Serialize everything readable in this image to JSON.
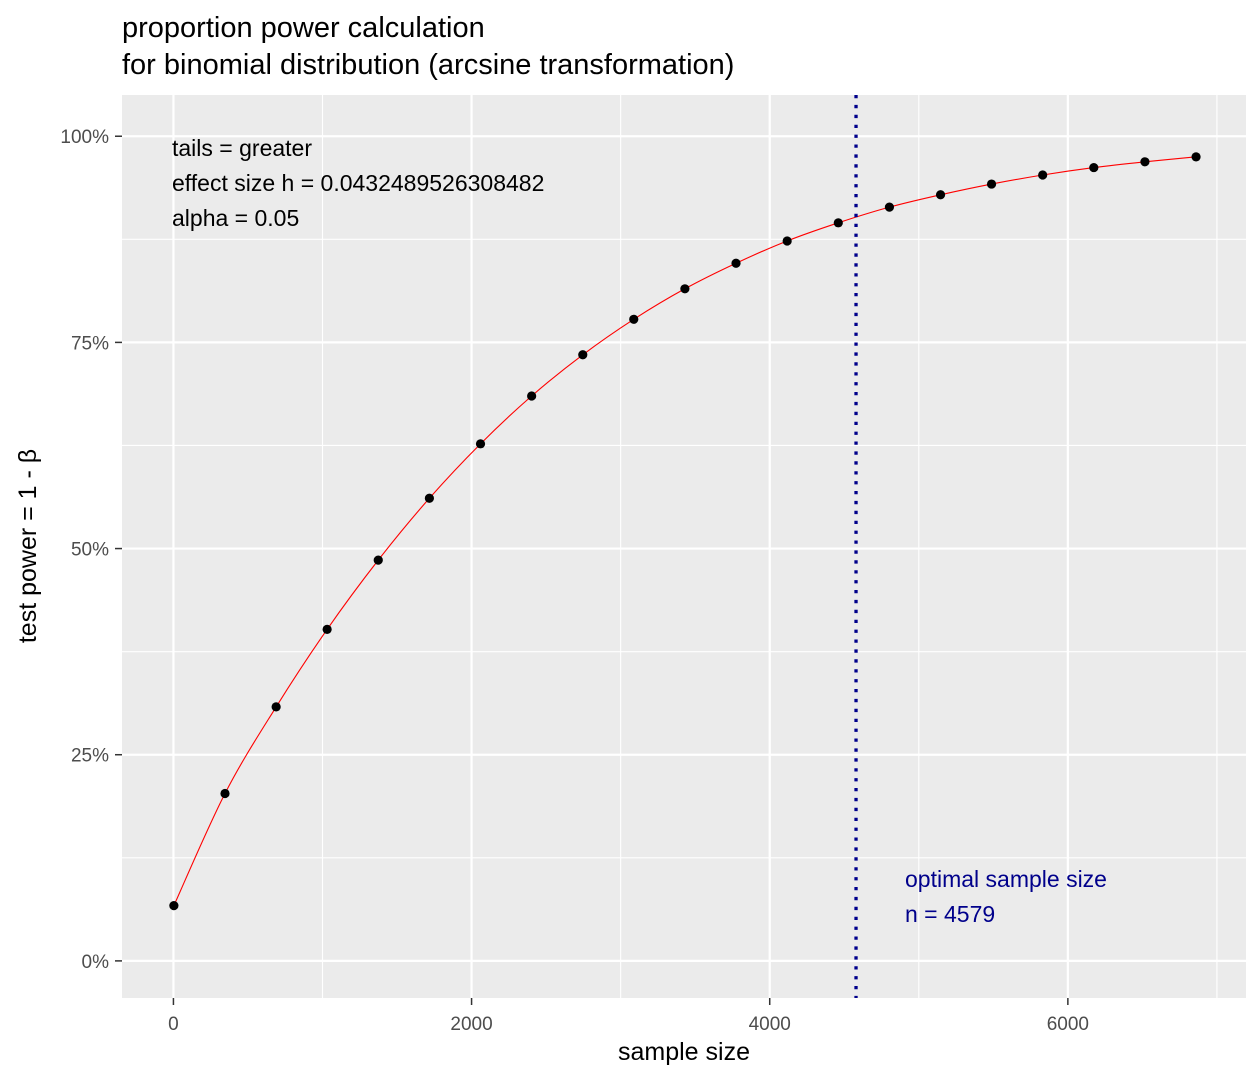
{
  "chart_data": {
    "type": "line",
    "title": [
      "proportion power calculation",
      "for binomial distribution (arcsine transformation)"
    ],
    "xlabel": "sample size",
    "ylabel": "test power = 1 - β",
    "xlim": [
      -345,
      7195
    ],
    "ylim": [
      -0.045,
      1.05
    ],
    "x_ticks": [
      {
        "value": 0,
        "label": "0"
      },
      {
        "value": 2000,
        "label": "2000"
      },
      {
        "value": 4000,
        "label": "4000"
      },
      {
        "value": 6000,
        "label": "6000"
      }
    ],
    "y_ticks": [
      {
        "value": 0,
        "label": "0%"
      },
      {
        "value": 0.25,
        "label": "25%"
      },
      {
        "value": 0.5,
        "label": "50%"
      },
      {
        "value": 0.75,
        "label": "75%"
      },
      {
        "value": 1,
        "label": "100%"
      }
    ],
    "grid": true,
    "colors": {
      "panel": "#ebebeb",
      "grid": "#ffffff",
      "line": "#ff0000",
      "points": "#000000",
      "optimal": "#00008b"
    },
    "series": [
      {
        "x": [
          3,
          346,
          689,
          1031,
          1374,
          1717,
          2060,
          2403,
          2746,
          3088,
          3431,
          3774,
          4117,
          4460,
          4803,
          5146,
          5488,
          5831,
          6174,
          6517,
          6860
        ],
        "values": [
          0.067,
          0.203,
          0.308,
          0.402,
          0.486,
          0.561,
          0.627,
          0.685,
          0.735,
          0.778,
          0.815,
          0.846,
          0.873,
          0.895,
          0.914,
          0.929,
          0.942,
          0.953,
          0.962,
          0.969,
          0.975
        ]
      }
    ],
    "annotations": [
      "tails = greater",
      "effect size h = 0.0432489526308482",
      "alpha = 0.05"
    ],
    "optimal": {
      "x": 4579,
      "label_lines": [
        "optimal sample size",
        "n = 4579"
      ]
    }
  }
}
